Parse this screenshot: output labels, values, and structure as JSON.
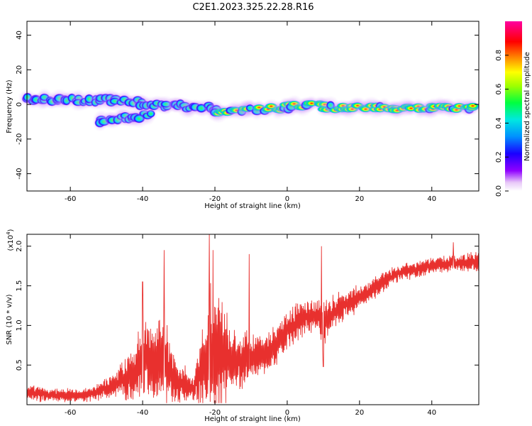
{
  "title": "C2E1.2023.325.22.28.R16",
  "chart_data": [
    {
      "type": "heatmap",
      "panel": "top",
      "xlabel": "Height of straight line (km)",
      "ylabel": "Frequency (Hz)",
      "xlim": [
        -72,
        53
      ],
      "ylim": [
        -50,
        48
      ],
      "xticks": [
        "-60",
        "-40",
        "-20",
        "0",
        "20",
        "40"
      ],
      "yticks": [
        "40",
        "20",
        "0",
        "-20",
        "-40"
      ],
      "colorbar": {
        "label": "Normalized spectral amplitude",
        "range": [
          0.0,
          1.0
        ],
        "ticks": [
          "0.0",
          "0.2",
          "0.4",
          "0.6",
          "0.8"
        ],
        "colormap": "rainbow (white-purple-blue-cyan-green-yellow-orange-red-magenta)"
      },
      "bands": [
        {
          "x": [
            -72,
            -40
          ],
          "freq_hz": [
            3,
            2
          ],
          "amplitude": 0.4
        },
        {
          "x": [
            -52,
            -38
          ],
          "freq_hz": [
            -10,
            -6
          ],
          "amplitude": 0.35
        },
        {
          "x": [
            -40,
            -20
          ],
          "freq_hz": [
            0,
            -2
          ],
          "amplitude": 0.4
        },
        {
          "x": [
            -20,
            0
          ],
          "freq_hz": [
            -4,
            -2
          ],
          "amplitude": 0.7
        },
        {
          "x": [
            0,
            10
          ],
          "freq_hz": [
            -1,
            0
          ],
          "amplitude": 0.75
        },
        {
          "x": [
            10,
            52
          ],
          "freq_hz": [
            -2,
            -2
          ],
          "amplitude": 0.9
        }
      ],
      "grid": false
    },
    {
      "type": "line",
      "panel": "bottom",
      "xlabel": "Height of straight line (km)",
      "ylabel": "SNR (10 * v/v)",
      "multiplier": "(x10^4)",
      "xlim": [
        -72,
        53
      ],
      "ylim": [
        0,
        2.15
      ],
      "xticks": [
        "-60",
        "-40",
        "-20",
        "0",
        "20",
        "40"
      ],
      "yticks": [
        "0.5",
        "1.0",
        "1.5",
        "2.0"
      ],
      "color": "#e8302e",
      "series_envelope": {
        "x": [
          -72,
          -65,
          -55,
          -48,
          -42,
          -40,
          -36,
          -34,
          -30,
          -26,
          -22,
          -21,
          -18,
          -14,
          -11,
          -8,
          -4,
          0,
          5,
          8,
          10,
          12,
          16,
          20,
          25,
          30,
          35,
          40,
          45,
          50,
          53
        ],
        "mid": [
          0.15,
          0.12,
          0.12,
          0.25,
          0.4,
          0.6,
          0.5,
          0.55,
          0.3,
          0.2,
          0.6,
          0.7,
          0.6,
          0.55,
          0.6,
          0.6,
          0.7,
          0.95,
          1.1,
          1.15,
          1.0,
          1.15,
          1.25,
          1.35,
          1.5,
          1.65,
          1.7,
          1.75,
          1.78,
          1.8,
          1.8
        ],
        "amp": [
          0.1,
          0.08,
          0.08,
          0.15,
          0.35,
          0.45,
          0.5,
          0.55,
          0.25,
          0.15,
          0.7,
          0.8,
          0.6,
          0.35,
          0.35,
          0.25,
          0.25,
          0.25,
          0.2,
          0.2,
          0.3,
          0.2,
          0.18,
          0.15,
          0.12,
          0.1,
          0.1,
          0.1,
          0.1,
          0.12,
          0.12
        ]
      },
      "spikes": [
        {
          "x": -40,
          "y": 1.55
        },
        {
          "x": -34,
          "y": 1.95
        },
        {
          "x": -21.5,
          "y": 2.15
        },
        {
          "x": -20.5,
          "y": 1.95
        },
        {
          "x": -10.5,
          "y": 1.9
        },
        {
          "x": 9.5,
          "y": 2.0
        },
        {
          "x": 10,
          "y": 0.48
        },
        {
          "x": 46,
          "y": 2.05
        }
      ],
      "grid": false
    }
  ]
}
